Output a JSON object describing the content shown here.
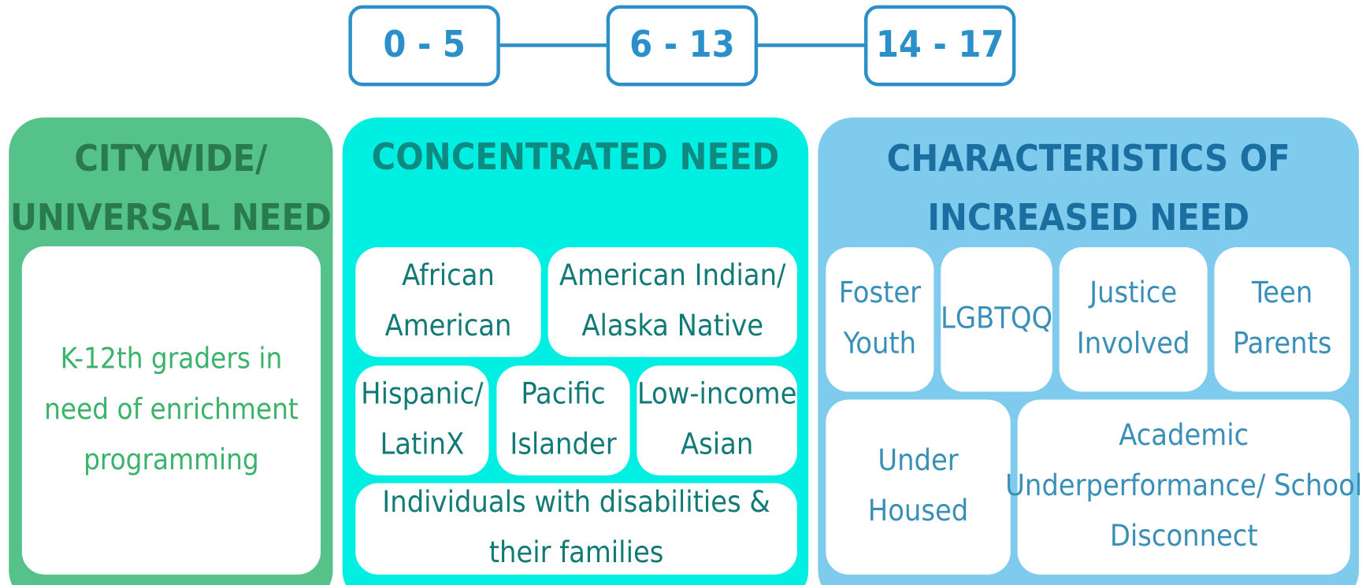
{
  "age_ranges": [
    "0 - 5",
    "6 - 13",
    "14 - 17"
  ],
  "panels": [
    {
      "title": [
        "CITYWIDE/",
        "UNIVERSAL NEED"
      ],
      "items": [
        [
          "K-12th graders in",
          "need of enrichment",
          "programming"
        ]
      ]
    },
    {
      "title": [
        "CONCENTRATED NEED"
      ],
      "items": [
        [
          "African",
          "American"
        ],
        [
          "American Indian/",
          "Alaska Native"
        ],
        [
          "Hispanic/",
          "LatinX"
        ],
        [
          "Pacific",
          "Islander"
        ],
        [
          "Low-income",
          "Asian"
        ],
        [
          "Individuals with disabilities &",
          "their families"
        ]
      ]
    },
    {
      "title": [
        "CHARACTERISTICS OF",
        "INCREASED NEED"
      ],
      "items": [
        [
          "Foster",
          "Youth"
        ],
        [
          "LGBTQQ"
        ],
        [
          "Justice",
          "Involved"
        ],
        [
          "Teen",
          "Parents"
        ],
        [
          "Under",
          "Housed"
        ],
        [
          "Academic",
          "Underperformance/ School",
          "Disconnect"
        ]
      ]
    }
  ]
}
